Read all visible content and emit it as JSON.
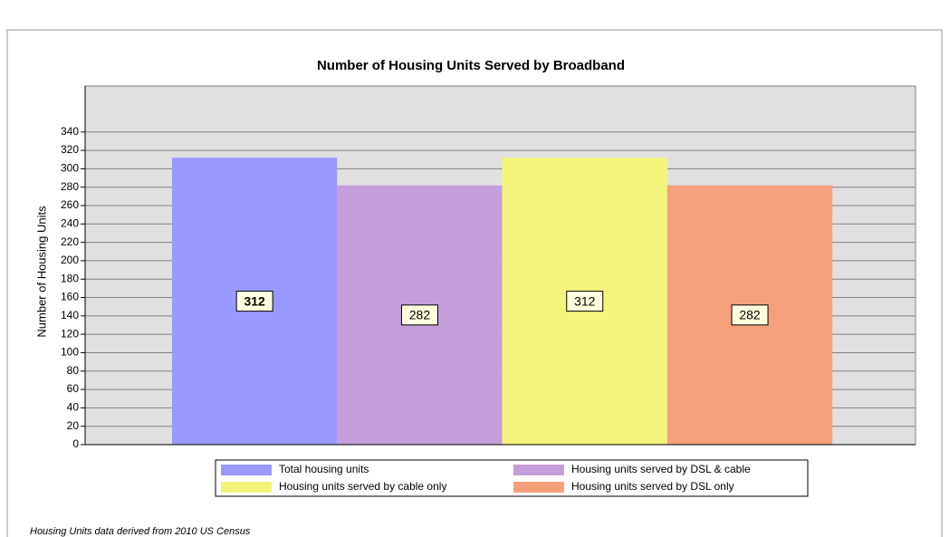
{
  "chart_data": {
    "type": "bar",
    "title": "Number of Housing Units Served by Broadband",
    "y_label": "Number of Housing Units",
    "footnote": "Housing Units data derived from 2010 US Census",
    "categories": [
      null
    ],
    "series": [
      {
        "name": "Total housing units",
        "color": "#9999ff",
        "values": [
          312
        ]
      },
      {
        "name": "Housing units served by DSL & cable",
        "color": "#c39ed8",
        "values": [
          282
        ]
      },
      {
        "name": "Housing units served by cable only",
        "color": "#f4f47c",
        "values": [
          312
        ]
      },
      {
        "name": "Housing units served by DSL only",
        "color": "#f4a07c",
        "values": [
          282
        ]
      }
    ],
    "ylim": [
      0,
      390
    ],
    "yticks": [
      0,
      20,
      40,
      60,
      80,
      100,
      120,
      140,
      160,
      180,
      200,
      220,
      240,
      260,
      280,
      300,
      320,
      340
    ],
    "grid": true
  }
}
